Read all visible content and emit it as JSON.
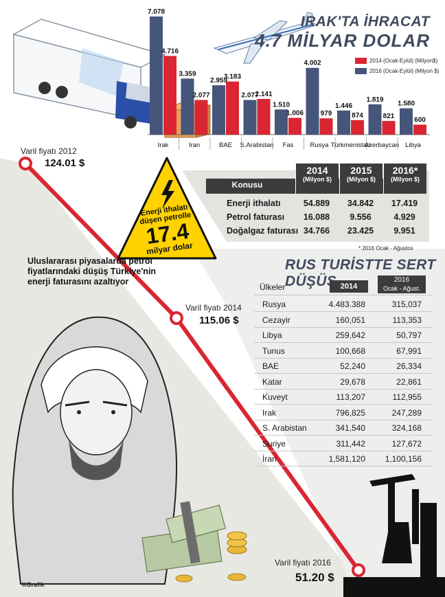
{
  "header": {
    "title_line1": "IRAK'TA İHRACAT",
    "title_line2": "4.7 MİLYAR DOLAR"
  },
  "legend": {
    "series_2014": "2014 (Ocak-Eylül) (Milyon$)",
    "series_2016": "2016 (Ocak-Eylül) (Milyon $)"
  },
  "colors": {
    "bar_2014": "#d92632",
    "bar_2016": "#46557a",
    "oil_line": "#d92632",
    "warning_yellow": "#ffd200",
    "table_header": "#3c3c3c",
    "background_gray": "#e8e8e3"
  },
  "chart_data": {
    "type": "bar",
    "categories": [
      "Irak",
      "Iran",
      "BAE",
      "S.Arabistan",
      "Fas",
      "Rusya",
      "Türkmenistan",
      "Azerbaycan",
      "Libya"
    ],
    "series": [
      {
        "name": "2016 (Ocak-Eylül) (Milyon $)",
        "values": [
          7.078,
          3.359,
          2.959,
          2.077,
          1.51,
          4.002,
          1.446,
          1.819,
          1.58
        ],
        "labels": [
          "7.078",
          "3.359",
          "2.959",
          "2.077",
          "1.510",
          "4.002",
          "1.446",
          "1.819",
          "1.580"
        ]
      },
      {
        "name": "2014 (Ocak-Eylül) (Milyon$)",
        "values": [
          4.716,
          2.077,
          3.183,
          2.141,
          1.006,
          0.979,
          0.874,
          0.821,
          0.6
        ],
        "labels": [
          "4.716",
          "2.077",
          "3.183",
          "2.141",
          "1.006",
          "979",
          "874",
          "821",
          "600"
        ]
      }
    ],
    "title": "IRAK'TA İHRACAT 4.7 MİLYAR DOLAR"
  },
  "oil_prices": {
    "label_2012": "Varil fiyatı 2012",
    "value_2012": "124.01 $",
    "label_2014": "Varil fiyatı 2014",
    "value_2014": "115.06 $",
    "label_2016": "Varil fiyatı 2016",
    "value_2016": "51.20 $"
  },
  "energy_bubble": {
    "line1": "Enerji ithalatı",
    "line2": "düşen petrolle",
    "big": "17.4",
    "line3": "milyar dolar"
  },
  "energy_table": {
    "header_label": "Konusu",
    "columns": [
      {
        "year": "2014",
        "unit": "(Milyon $)"
      },
      {
        "year": "2015",
        "unit": "(Milyon $)"
      },
      {
        "year": "2016*",
        "unit": "(Milyon $)"
      }
    ],
    "rows": [
      {
        "label": "Enerji ithalatı",
        "v2014": "54.889",
        "v2015": "34.842",
        "v2016": "17.419"
      },
      {
        "label": "Petrol faturası",
        "v2014": "16.088",
        "v2015": "9.556",
        "v2016": "4.929"
      },
      {
        "label": "Doğalgaz faturası",
        "v2014": "34.766",
        "v2015": "23.425",
        "v2016": "9.951"
      }
    ],
    "footnote": "* 2016 Ocak - Ağustos"
  },
  "intro_text": "Uluslararası piyasalarda petrol fiyatlarındaki düşüş Türkiye'nin enerji faturasını azaltıyor",
  "tourism": {
    "title": "RUS TURİSTTE SERT DÜŞÜŞ",
    "col_country": "Ülkeler",
    "col_2014": "2014",
    "col_2016_line1": "2016",
    "col_2016_line2": "Ocak - Ağust.",
    "rows": [
      {
        "country": "Rusya",
        "v2014": "4.483.388",
        "v2016": "315,037"
      },
      {
        "country": "Cezayir",
        "v2014": "160,051",
        "v2016": "113,353"
      },
      {
        "country": "Libya",
        "v2014": "259,642",
        "v2016": "50,797"
      },
      {
        "country": "Tunus",
        "v2014": "100,668",
        "v2016": "67,991"
      },
      {
        "country": "BAE",
        "v2014": "52,240",
        "v2016": "26,334"
      },
      {
        "country": "Katar",
        "v2014": "29,678",
        "v2016": "22,861"
      },
      {
        "country": "Kuveyt",
        "v2014": "113,207",
        "v2016": "112,955"
      },
      {
        "country": "Irak",
        "v2014": "796,825",
        "v2016": "247,289"
      },
      {
        "country": "S. Arabistan",
        "v2014": "341,540",
        "v2016": "324,168"
      },
      {
        "country": "Suriye",
        "v2014": "311,442",
        "v2016": "127,672"
      },
      {
        "country": "İran",
        "v2014": "1,581,120",
        "v2016": "1,100,156"
      }
    ]
  },
  "credit": {
    "logo": "KGrafik"
  }
}
